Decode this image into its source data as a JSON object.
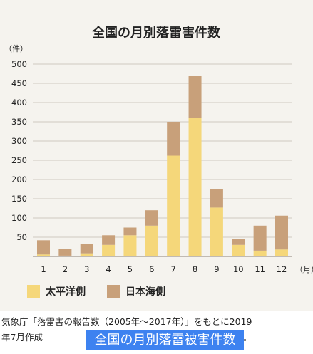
{
  "chart_data": {
    "type": "bar",
    "stacked": true,
    "title": "全国の月別落雷害件数",
    "yunit": "（件）",
    "xunit": "（月）",
    "categories": [
      "1",
      "2",
      "3",
      "4",
      "5",
      "6",
      "7",
      "8",
      "9",
      "10",
      "11",
      "12"
    ],
    "series": [
      {
        "name": "太平洋側",
        "color": "#f5d77a",
        "values": [
          5,
          2,
          8,
          30,
          55,
          80,
          262,
          360,
          127,
          30,
          15,
          18
        ]
      },
      {
        "name": "日本海側",
        "color": "#c8a07a",
        "values": [
          37,
          18,
          24,
          25,
          20,
          40,
          88,
          110,
          48,
          15,
          65,
          88
        ]
      }
    ],
    "ylim": [
      0,
      500
    ],
    "yticks": [
      50,
      100,
      150,
      200,
      250,
      300,
      350,
      400,
      450,
      500
    ],
    "grid": true,
    "legend_position": "bottom-left"
  },
  "caption": {
    "line1": "気象庁「落雷害の報告数（2005年～2017年）」をもとに2019",
    "line2": "年7月作成",
    "tag": "全国の月別落雷被害件数"
  }
}
